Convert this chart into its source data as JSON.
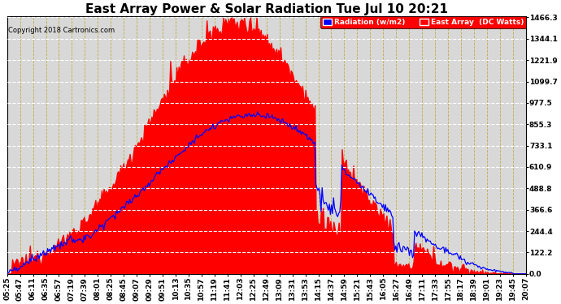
{
  "title": "East Array Power & Solar Radiation Tue Jul 10 20:21",
  "copyright": "Copyright 2018 Cartronics.com",
  "legend_label_radiation": "Radiation (w/m2)",
  "legend_label_array": "East Array  (DC Watts)",
  "y_tick_values": [
    0.0,
    122.2,
    244.4,
    366.6,
    488.8,
    610.9,
    733.1,
    855.3,
    977.5,
    1099.7,
    1221.9,
    1344.1,
    1466.3
  ],
  "ymax": 1466.3,
  "ymin": 0.0,
  "bg_color": "#ffffff",
  "plot_bg_color": "#d8d8d8",
  "grid_color_h": "#ffffff",
  "grid_color_v": "#ccaa44",
  "title_fontsize": 11,
  "tick_fontsize": 6.5,
  "time_labels": [
    "05:25",
    "05:47",
    "06:11",
    "06:35",
    "06:57",
    "07:19",
    "07:39",
    "08:01",
    "08:25",
    "08:45",
    "09:07",
    "09:29",
    "09:51",
    "10:13",
    "10:35",
    "10:57",
    "11:19",
    "11:41",
    "12:03",
    "12:25",
    "12:49",
    "13:09",
    "13:31",
    "13:53",
    "14:15",
    "14:37",
    "14:59",
    "15:21",
    "15:43",
    "16:05",
    "16:27",
    "16:49",
    "17:11",
    "17:33",
    "17:55",
    "18:17",
    "18:39",
    "19:01",
    "19:23",
    "19:45",
    "20:07"
  ]
}
